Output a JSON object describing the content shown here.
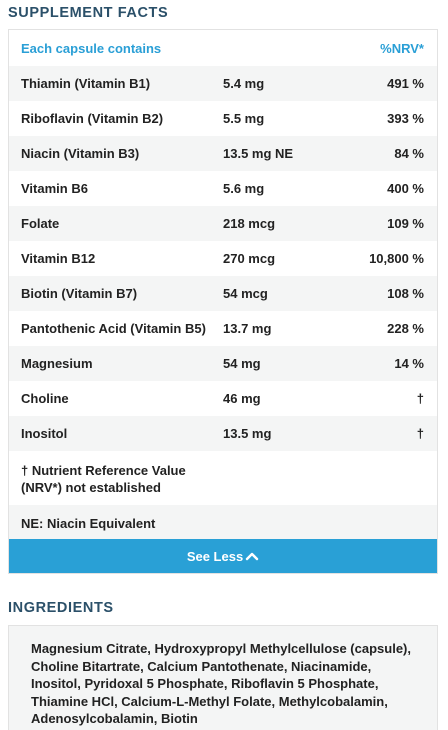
{
  "facts": {
    "title": "SUPPLEMENT FACTS",
    "header": {
      "label": "Each capsule contains",
      "nrv": "%NRV*"
    },
    "rows": [
      {
        "name": "Thiamin (Vitamin B1)",
        "amount": "5.4 mg",
        "nrv": "491 %"
      },
      {
        "name": "Riboflavin (Vitamin B2)",
        "amount": "5.5 mg",
        "nrv": "393 %"
      },
      {
        "name": "Niacin (Vitamin B3)",
        "amount": "13.5 mg NE",
        "nrv": "84 %"
      },
      {
        "name": "Vitamin B6",
        "amount": "5.6 mg",
        "nrv": "400 %"
      },
      {
        "name": "Folate",
        "amount": "218 mcg",
        "nrv": "109 %"
      },
      {
        "name": "Vitamin B12",
        "amount": "270 mcg",
        "nrv": "10,800 %"
      },
      {
        "name": "Biotin (Vitamin B7)",
        "amount": "54 mcg",
        "nrv": "108 %"
      },
      {
        "name": "Pantothenic Acid (Vitamin B5)",
        "amount": "13.7 mg",
        "nrv": "228 %"
      },
      {
        "name": "Magnesium",
        "amount": "54 mg",
        "nrv": "14 %"
      },
      {
        "name": "Choline",
        "amount": "46 mg",
        "nrv": "†"
      },
      {
        "name": "Inositol",
        "amount": "13.5 mg",
        "nrv": "†"
      }
    ],
    "footnote": "† Nutrient Reference Value (NRV*) not established",
    "ne_note": "NE: Niacin Equivalent",
    "see_less_label": "See Less"
  },
  "ingredients": {
    "title": "INGREDIENTS",
    "text": "Magnesium Citrate, Hydroxypropyl Methylcellulose (capsule), Choline  Bitartrate, Calcium Pantothenate, Niacinamide, Inositol, Pyridoxal 5 Phosphate, Riboflavin 5 Phosphate, Thiamine HCl, Calcium-L-Methyl Folate, Methylcobalamin, Adenosylcobalamin, Biotin"
  },
  "icons": {
    "see_less": "chevron-up-icon"
  },
  "colors": {
    "heading": "#2b5069",
    "accent": "#29a0d6",
    "row_shade": "#f4f5f5"
  }
}
